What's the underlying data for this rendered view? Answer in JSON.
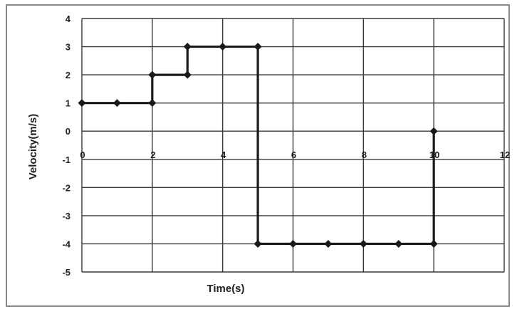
{
  "chart_data": {
    "type": "line",
    "title": "",
    "xlabel": "Time(s)",
    "ylabel": "Velocity(m/s)",
    "xlim": [
      0,
      12
    ],
    "ylim": [
      -5,
      4
    ],
    "xticks": [
      0,
      2,
      4,
      6,
      8,
      10,
      12
    ],
    "yticks": [
      4,
      3,
      2,
      1,
      0,
      -1,
      -2,
      -3,
      -4,
      -5
    ],
    "grid": true,
    "legend": "none",
    "colors": {
      "line": "#1a1a1a",
      "grid": "#3a3a3a",
      "frame": "#8a8a8a"
    },
    "series": [
      {
        "x": [
          0,
          1,
          2,
          2,
          3,
          3,
          4,
          5,
          5,
          6,
          7,
          8,
          9,
          10,
          10
        ],
        "y": [
          1,
          1,
          1,
          2,
          2,
          3,
          3,
          3,
          -4,
          -4,
          -4,
          -4,
          -4,
          -4,
          0
        ]
      }
    ]
  }
}
